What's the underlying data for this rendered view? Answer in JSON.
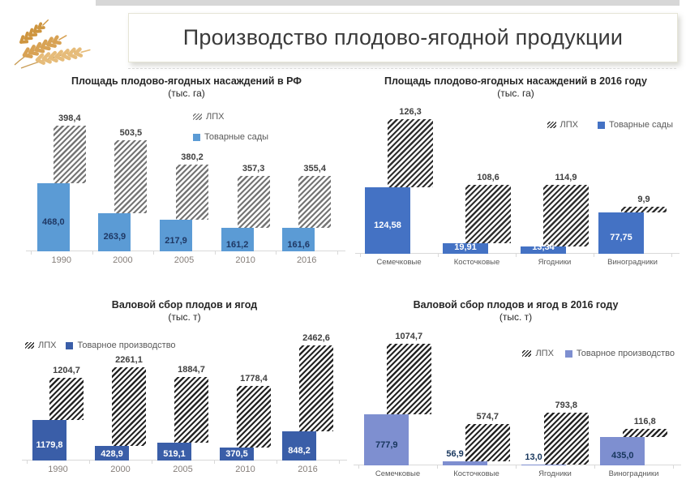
{
  "slide": {
    "title": "Производство плодово-ягодной продукции",
    "decoration": "wheat-ears-image"
  },
  "chart_data": [
    {
      "type": "bar",
      "stacked": true,
      "title": "Площадь плодово-ягодных насаждений в РФ",
      "subtitle": "(тыс. га)",
      "categories": [
        "1990",
        "2000",
        "2005",
        "2010",
        "2016"
      ],
      "legend_position": "center-right-vertical",
      "series": [
        {
          "name": "Товарные сады",
          "pattern": "solid",
          "color": "#5B9BD5",
          "values": [
            468.0,
            263.9,
            217.9,
            161.2,
            161.6
          ],
          "labels": [
            "468,0",
            "263,9",
            "217,9",
            "161,2",
            "161,6"
          ]
        },
        {
          "name": "ЛПХ",
          "pattern": "hatch",
          "color": "#757575",
          "values": [
            398.4,
            503.5,
            380.2,
            357.3,
            355.4
          ],
          "labels": [
            "398,4",
            "503,5",
            "380,2",
            "357,3",
            "355,4"
          ]
        }
      ]
    },
    {
      "type": "bar",
      "stacked": true,
      "title": "Площадь плодово-ягодных насаждений в 2016 году",
      "subtitle": "(тыс. га)",
      "categories": [
        "Семечковые",
        "Косточковые",
        "Ягодники",
        "Виноградники"
      ],
      "legend_position": "top-right-horizontal",
      "series": [
        {
          "name": "Товарные сады",
          "pattern": "solid",
          "color": "#4472C4",
          "values": [
            124.58,
            19.91,
            13.34,
            77.75
          ],
          "labels": [
            "124,58",
            "19,91",
            "13,34",
            "77,75"
          ]
        },
        {
          "name": "ЛПХ",
          "pattern": "hatch",
          "color": "#2E2E2E",
          "values": [
            126.3,
            108.6,
            114.9,
            9.9
          ],
          "labels": [
            "126,3",
            "108,6",
            "114,9",
            "9,9"
          ]
        }
      ]
    },
    {
      "type": "bar",
      "stacked": true,
      "title": "Валовой сбор плодов и ягод",
      "subtitle": "(тыс. т)",
      "categories": [
        "1990",
        "2000",
        "2005",
        "2010",
        "2016"
      ],
      "legend_position": "top-left-horizontal",
      "series": [
        {
          "name": "Товарное производство",
          "pattern": "solid",
          "color": "#3A5EA8",
          "values": [
            1179.8,
            428.9,
            519.1,
            370.5,
            848.2
          ],
          "labels": [
            "1179,8",
            "428,9",
            "519,1",
            "370,5",
            "848,2"
          ]
        },
        {
          "name": "ЛПХ",
          "pattern": "hatch",
          "color": "#242424",
          "values": [
            1204.7,
            2261.1,
            1884.7,
            1778.4,
            2462.6
          ],
          "labels": [
            "1204,7",
            "2261,1",
            "1884,7",
            "1778,4",
            "2462,6"
          ]
        }
      ]
    },
    {
      "type": "bar",
      "stacked": true,
      "title": "Валовой сбор плодов и ягод в 2016 году",
      "subtitle": "(тыс. т)",
      "categories": [
        "Семечковые",
        "Косточковые",
        "Ягодники",
        "Виноградники"
      ],
      "legend_position": "middle-right-horizontal",
      "series": [
        {
          "name": "Товарное производство",
          "pattern": "solid",
          "color": "#7E8FD0",
          "values": [
            777.9,
            56.9,
            13.0,
            435.0
          ],
          "labels": [
            "777,9",
            "56,9",
            "13,0",
            "435,0"
          ]
        },
        {
          "name": "ЛПХ",
          "pattern": "hatch",
          "color": "#242424",
          "values": [
            1074.7,
            574.7,
            793.8,
            116.8
          ],
          "labels": [
            "1074,7",
            "574,7",
            "793,8",
            "116,8"
          ]
        }
      ]
    }
  ]
}
